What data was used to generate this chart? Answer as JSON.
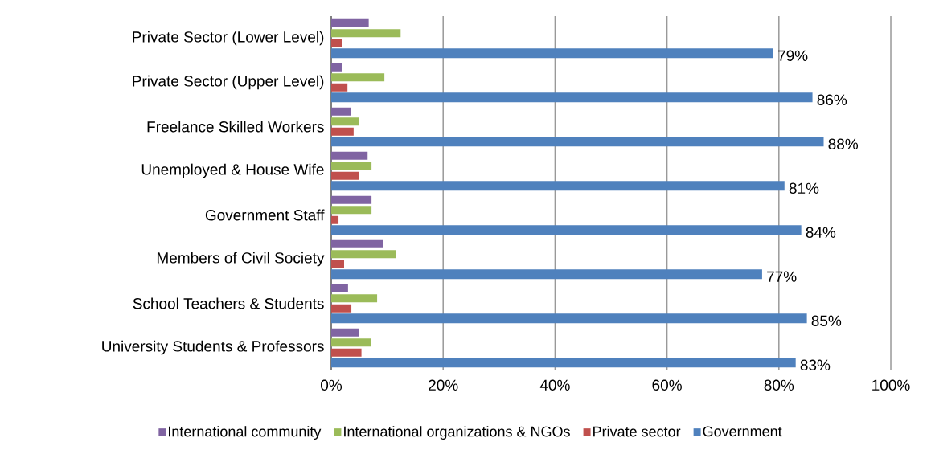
{
  "chart_data": {
    "type": "bar",
    "orientation": "horizontal",
    "categories": [
      "Private Sector (Lower Level)",
      "Private Sector (Upper Level)",
      "Freelance Skilled Workers",
      "Unemployed & House Wife",
      "Government Staff",
      "Members of Civil Society",
      "School Teachers & Students",
      "University Students & Professors"
    ],
    "series": [
      {
        "name": "International community",
        "color": "#8064a2",
        "values": [
          6.7,
          1.9,
          3.5,
          6.5,
          7.2,
          9.3,
          3.0,
          5.0
        ]
      },
      {
        "name": "International organizations & NGOs",
        "color": "#9bbb59",
        "values": [
          12.4,
          9.5,
          4.9,
          7.2,
          7.2,
          11.6,
          8.2,
          7.1
        ]
      },
      {
        "name": "Private sector",
        "color": "#c0504d",
        "values": [
          1.9,
          2.9,
          4.0,
          5.0,
          1.3,
          2.3,
          3.6,
          5.4
        ]
      },
      {
        "name": "Government",
        "color": "#4f81bd",
        "values": [
          79,
          86,
          88,
          81,
          84,
          77,
          85,
          83
        ],
        "value_labels": [
          "79%",
          "86%",
          "88%",
          "81%",
          "84%",
          "77%",
          "85%",
          "83%"
        ]
      }
    ],
    "xlim": [
      0,
      100
    ],
    "xticks": [
      {
        "value": 0,
        "label": "0%"
      },
      {
        "value": 20,
        "label": "20%"
      },
      {
        "value": 40,
        "label": "40%"
      },
      {
        "value": 60,
        "label": "60%"
      },
      {
        "value": 80,
        "label": "80%"
      },
      {
        "value": 100,
        "label": "100%"
      }
    ],
    "grid": "x",
    "legend": "bottom"
  }
}
